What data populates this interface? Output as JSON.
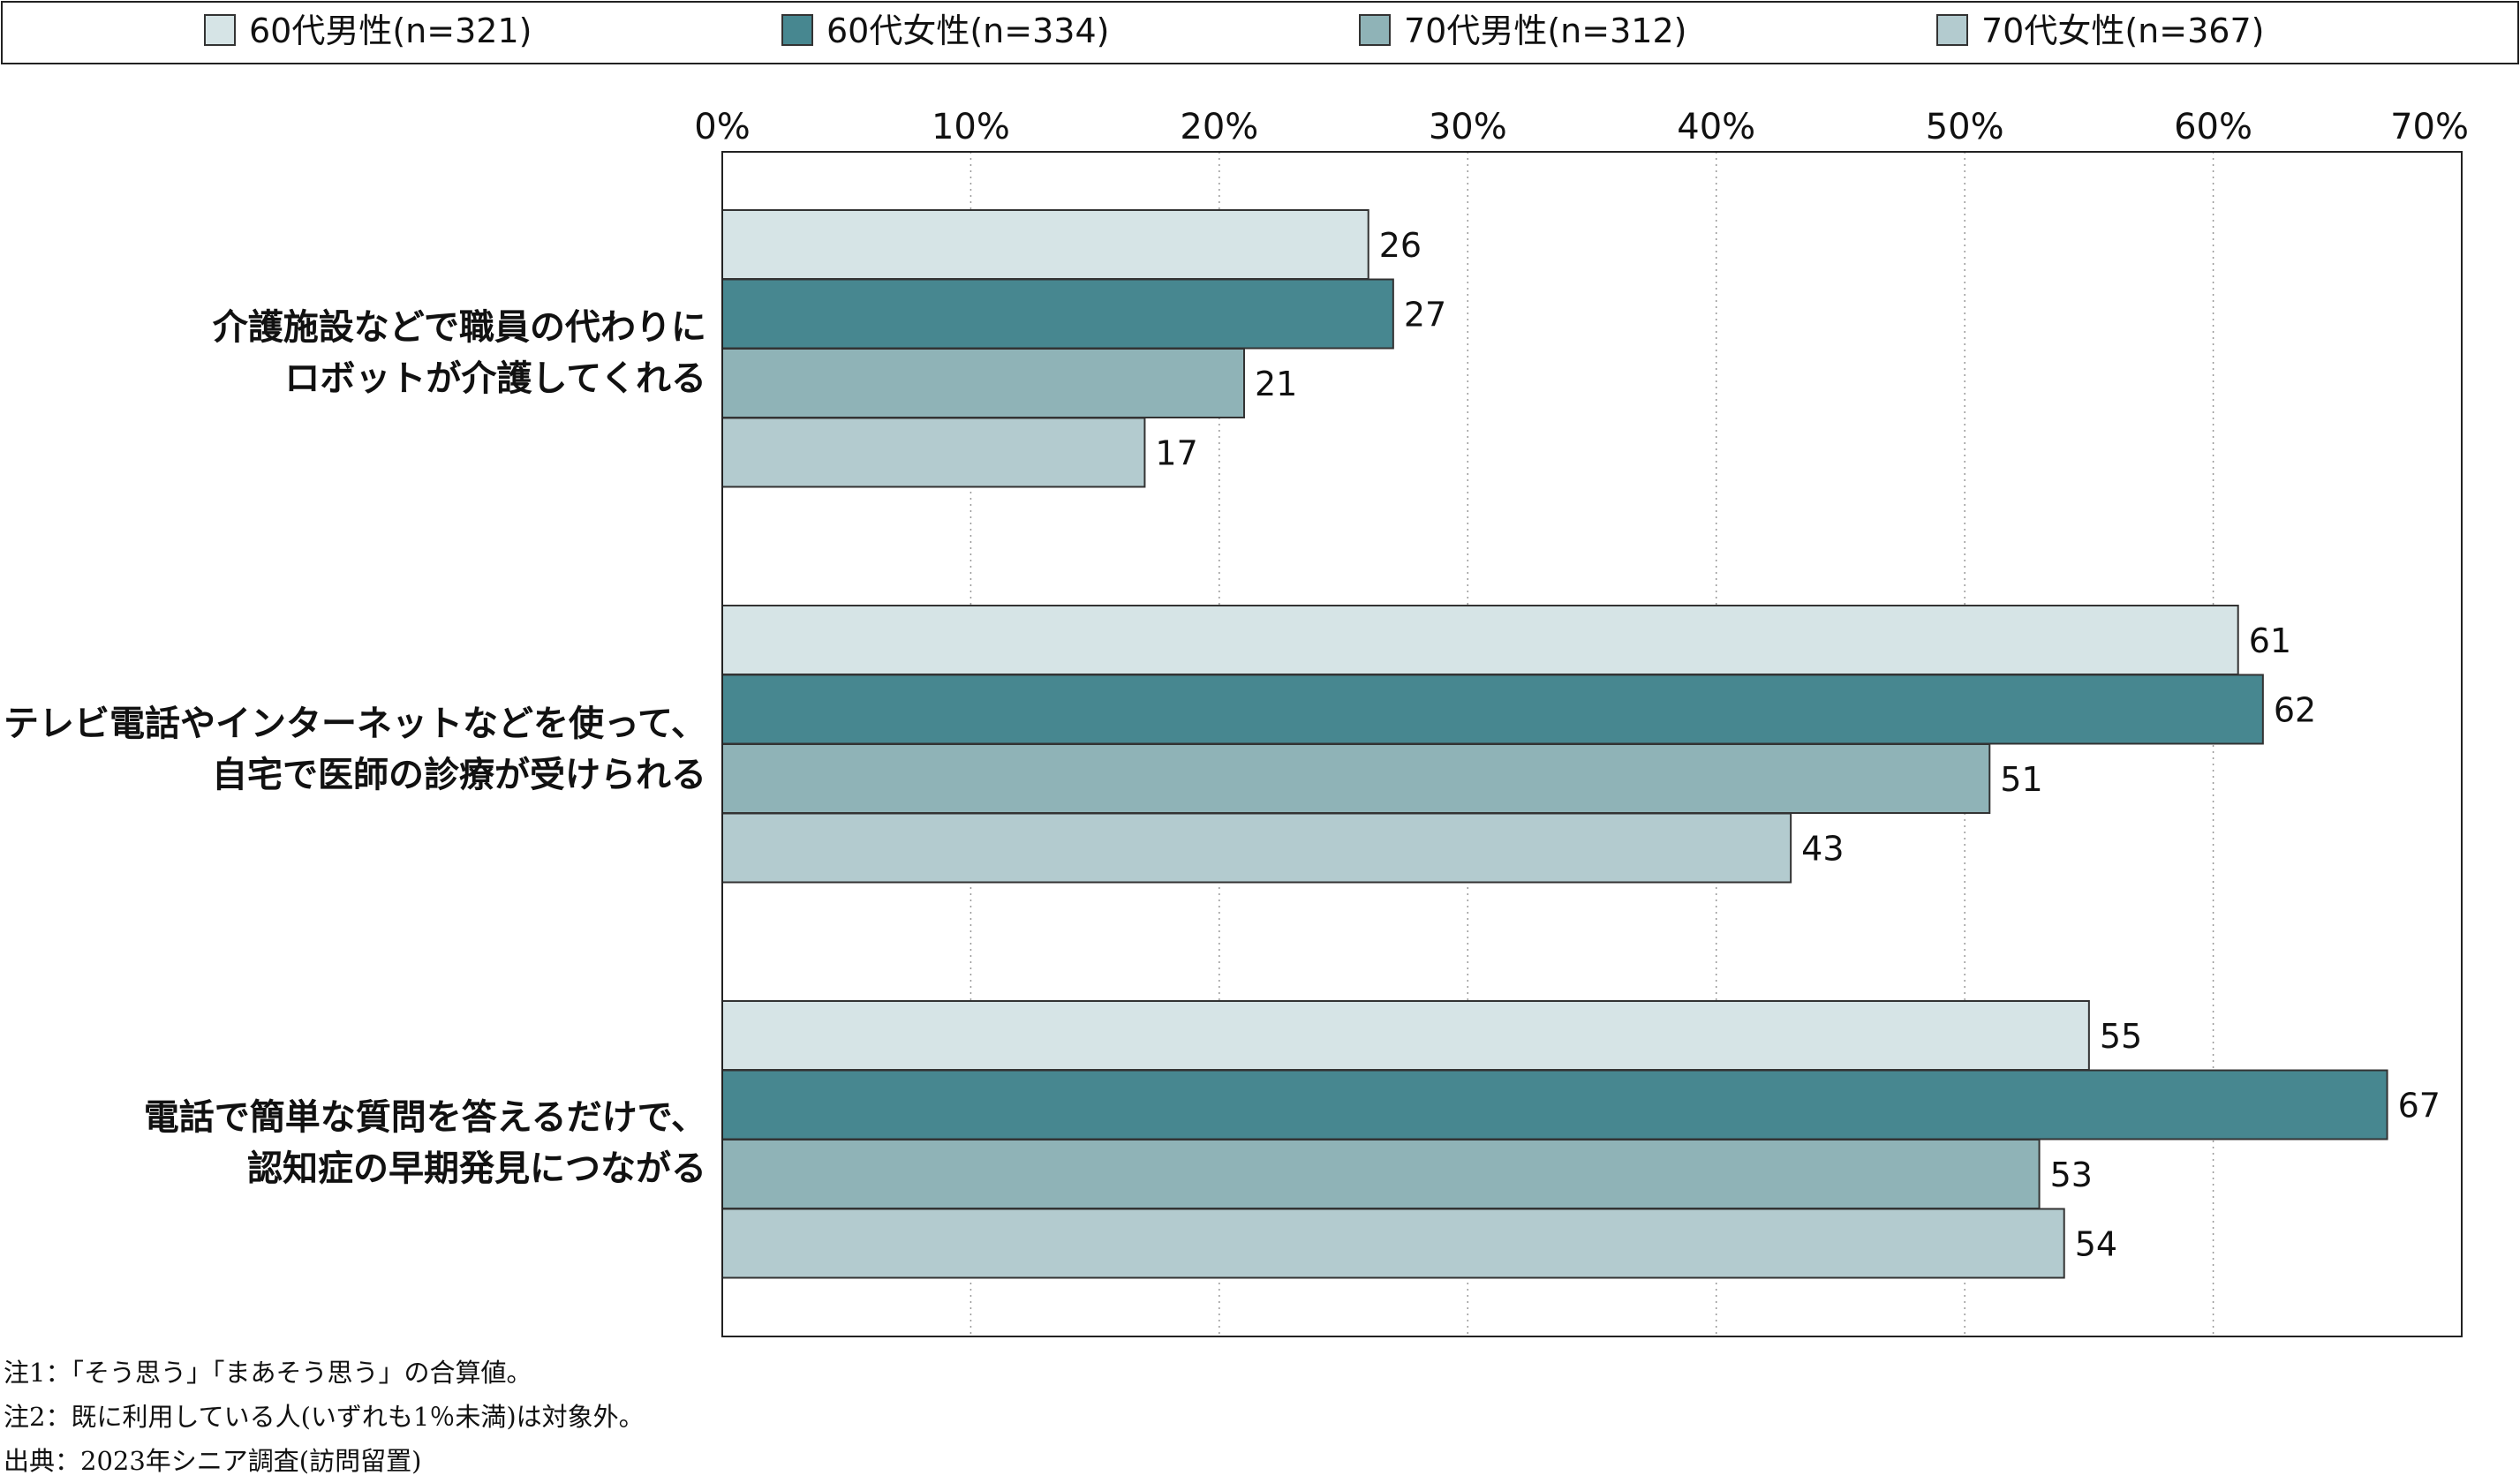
{
  "chart_data": {
    "type": "bar",
    "orientation": "horizontal",
    "categories": [
      [
        "介護施設などで職員の代わりに",
        "ロボットが介護してくれる"
      ],
      [
        "テレビ電話やインターネットなどを使って、",
        "自宅で医師の診療が受けられる"
      ],
      [
        "電話で簡単な質問を答えるだけで、",
        "認知症の早期発見につながる"
      ]
    ],
    "series": [
      {
        "name": "60代男性(n=321)",
        "values": [
          26,
          61,
          55
        ],
        "color": "#d6e4e6"
      },
      {
        "name": "60代女性(n=334)",
        "values": [
          27,
          62,
          67
        ],
        "color": "#478790"
      },
      {
        "name": "70代男性(n=312)",
        "values": [
          21,
          51,
          53
        ],
        "color": "#8fb3b7"
      },
      {
        "name": "70代女性(n=367)",
        "values": [
          17,
          43,
          54
        ],
        "color": "#b3cbcf"
      }
    ],
    "xlim": [
      0,
      70
    ],
    "ticks": [
      "0%",
      "10%",
      "20%",
      "30%",
      "40%",
      "50%",
      "60%",
      "70%"
    ],
    "tick_values": [
      0,
      10,
      20,
      30,
      40,
      50,
      60,
      70
    ],
    "grid": "vertical-dotted",
    "legend_position": "top"
  },
  "notes": [
    "注1：「そう思う」「まあそう思う」の合算値。",
    "注2：既に利用している人(いずれも1％未満)は対象外。",
    "出典：2023年シニア調査(訪問留置)"
  ]
}
